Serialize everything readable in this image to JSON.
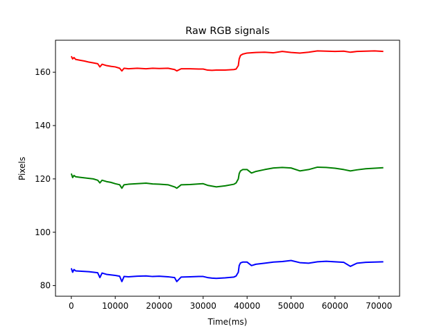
{
  "chart_data": {
    "type": "line",
    "title": "Raw RGB signals",
    "xlabel": "Time(ms)",
    "ylabel": "Pixels",
    "xlim": [
      -3600,
      74700
    ],
    "ylim": [
      76,
      172
    ],
    "grid": false,
    "xticks": [
      {
        "value": 0,
        "label": "0"
      },
      {
        "value": 10000,
        "label": "10000"
      },
      {
        "value": 20000,
        "label": "20000"
      },
      {
        "value": 30000,
        "label": "30000"
      },
      {
        "value": 40000,
        "label": "40000"
      },
      {
        "value": 50000,
        "label": "50000"
      },
      {
        "value": 60000,
        "label": "60000"
      },
      {
        "value": 70000,
        "label": "70000"
      }
    ],
    "yticks": [
      {
        "value": 80,
        "label": "80"
      },
      {
        "value": 100,
        "label": "100"
      },
      {
        "value": 120,
        "label": "120"
      },
      {
        "value": 140,
        "label": "140"
      },
      {
        "value": 160,
        "label": "160"
      }
    ],
    "series": [
      {
        "color": "#ff0000",
        "x": [
          0,
          300,
          600,
          1000,
          2000,
          3000,
          4000,
          5000,
          6000,
          6500,
          7000,
          8000,
          9000,
          10000,
          11000,
          11500,
          12000,
          13000,
          15000,
          17000,
          18500,
          20000,
          22000,
          23500,
          24000,
          25000,
          27000,
          29000,
          30000,
          31000,
          32000,
          33000,
          35000,
          37000,
          37500,
          38000,
          38200,
          38500,
          39000,
          40000,
          42000,
          44000,
          46000,
          48000,
          50000,
          52000,
          54000,
          56000,
          58000,
          60000,
          62000,
          63500,
          65000,
          67000,
          69000,
          71000
        ],
        "y": [
          166,
          165,
          165.5,
          164.8,
          164.5,
          164.2,
          163.8,
          163.5,
          163.2,
          162,
          163,
          162.5,
          162.2,
          162,
          161.5,
          160.5,
          161.5,
          161.3,
          161.5,
          161.3,
          161.5,
          161.4,
          161.5,
          161,
          160.5,
          161.3,
          161.3,
          161.2,
          161.2,
          160.8,
          160.7,
          160.8,
          160.8,
          161,
          161.2,
          162.5,
          165,
          166.3,
          166.8,
          167.2,
          167.4,
          167.5,
          167.3,
          167.8,
          167.4,
          167.2,
          167.5,
          168,
          167.9,
          167.8,
          167.9,
          167.5,
          167.8,
          167.9,
          168,
          167.8
        ]
      },
      {
        "color": "#008000",
        "x": [
          0,
          300,
          600,
          1000,
          2000,
          3000,
          4000,
          5000,
          6000,
          6500,
          7000,
          8000,
          9000,
          10000,
          11000,
          11500,
          12000,
          13000,
          15000,
          17000,
          18500,
          20000,
          22000,
          23500,
          24000,
          25000,
          27000,
          29000,
          30000,
          31000,
          32000,
          33000,
          35000,
          37000,
          37500,
          38000,
          38200,
          38500,
          39000,
          40000,
          41000,
          42000,
          44000,
          46000,
          48000,
          50000,
          52000,
          54000,
          56000,
          58000,
          60000,
          62000,
          63500,
          65000,
          67000,
          69000,
          71000
        ],
        "y": [
          122,
          120.5,
          121.3,
          120.8,
          120.6,
          120.4,
          120.2,
          120,
          119.5,
          118.5,
          119.5,
          119,
          118.7,
          118.2,
          117.8,
          116.5,
          117.8,
          118,
          118.2,
          118.4,
          118.1,
          118,
          117.8,
          117,
          116.5,
          117.8,
          117.9,
          118.1,
          118.2,
          117.6,
          117.3,
          117,
          117.4,
          118,
          118.5,
          120,
          122,
          123,
          123.5,
          123.5,
          122.2,
          122.8,
          123.5,
          124.1,
          124.3,
          124.1,
          123,
          123.5,
          124.4,
          124.3,
          124,
          123.5,
          123,
          123.4,
          123.8,
          124,
          124.2
        ]
      },
      {
        "color": "#0000ff",
        "x": [
          0,
          300,
          600,
          1000,
          2000,
          3000,
          4000,
          5000,
          6000,
          6500,
          7000,
          8000,
          9000,
          10000,
          11000,
          11500,
          12000,
          13000,
          15000,
          17000,
          18500,
          20000,
          22000,
          23500,
          24000,
          25000,
          27000,
          29000,
          30000,
          31000,
          32000,
          33000,
          35000,
          37000,
          37500,
          38000,
          38200,
          38500,
          39000,
          40000,
          41000,
          42000,
          44000,
          46000,
          48000,
          50000,
          52000,
          54000,
          56000,
          58000,
          60000,
          62000,
          63500,
          65000,
          67000,
          69000,
          71000
        ],
        "y": [
          86.5,
          85,
          86,
          85.5,
          85.4,
          85.3,
          85.2,
          85,
          84.8,
          83,
          84.7,
          84.2,
          84,
          83.8,
          83.5,
          81.5,
          83.4,
          83.3,
          83.5,
          83.6,
          83.4,
          83.5,
          83.3,
          83,
          81.5,
          83.2,
          83.3,
          83.4,
          83.4,
          83,
          82.8,
          82.7,
          82.9,
          83.2,
          83.6,
          85,
          87.5,
          88.5,
          88.8,
          88.8,
          87.5,
          88,
          88.4,
          88.8,
          89,
          89.4,
          88.6,
          88.4,
          88.9,
          89.1,
          88.9,
          88.7,
          87.2,
          88.4,
          88.7,
          88.8,
          88.9
        ]
      }
    ]
  }
}
